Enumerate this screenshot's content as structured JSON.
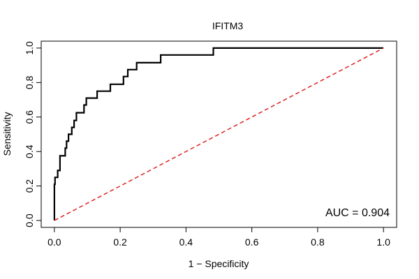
{
  "chart_data": {
    "type": "line",
    "title": "IFITM3",
    "xlabel": "1 − Specificity",
    "ylabel": "Sensitivity",
    "xlim": [
      -0.04,
      1.04
    ],
    "ylim": [
      -0.04,
      1.04
    ],
    "xticks": [
      0.0,
      0.2,
      0.4,
      0.6,
      0.8,
      1.0
    ],
    "yticks": [
      0.0,
      0.2,
      0.4,
      0.6,
      0.8,
      1.0
    ],
    "xtick_labels": [
      "0.0",
      "0.2",
      "0.4",
      "0.6",
      "0.8",
      "1.0"
    ],
    "ytick_labels": [
      "0.0",
      "0.2",
      "0.4",
      "0.6",
      "0.8",
      "1.0"
    ],
    "grid": false,
    "annotation": "AUC = 0.904",
    "series": [
      {
        "color": "#000000",
        "style": "solid",
        "x": [
          0,
          0,
          0.002,
          0.002,
          0.01,
          0.01,
          0.017,
          0.017,
          0.023,
          0.023,
          0.033,
          0.033,
          0.037,
          0.037,
          0.043,
          0.043,
          0.053,
          0.053,
          0.06,
          0.06,
          0.067,
          0.067,
          0.09,
          0.09,
          0.097,
          0.097,
          0.13,
          0.13,
          0.17,
          0.17,
          0.21,
          0.21,
          0.223,
          0.223,
          0.237,
          0.237,
          0.25,
          0.25,
          0.323,
          0.323,
          0.483,
          0.483,
          1.0
        ],
        "y": [
          0,
          0.21,
          0.21,
          0.25,
          0.25,
          0.29,
          0.29,
          0.375,
          0.375,
          0.375,
          0.375,
          0.42,
          0.42,
          0.46,
          0.46,
          0.5,
          0.5,
          0.54,
          0.54,
          0.58,
          0.58,
          0.625,
          0.625,
          0.67,
          0.67,
          0.71,
          0.71,
          0.75,
          0.75,
          0.79,
          0.79,
          0.835,
          0.835,
          0.875,
          0.875,
          0.875,
          0.875,
          0.915,
          0.915,
          0.96,
          0.96,
          1.0,
          1.0
        ]
      },
      {
        "color": "#dd2222",
        "style": "dashed",
        "x": [
          0,
          1
        ],
        "y": [
          0,
          1
        ]
      }
    ]
  }
}
